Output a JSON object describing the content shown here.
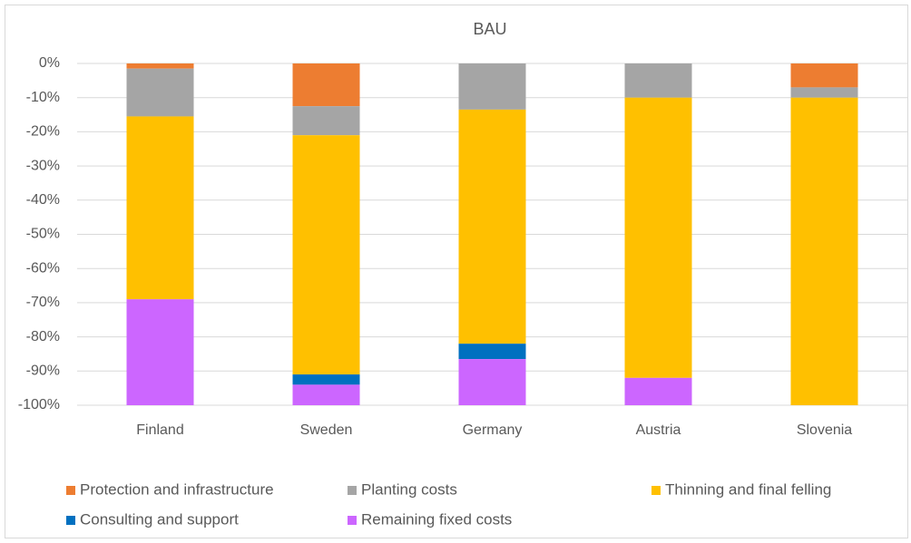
{
  "chart_data": {
    "type": "stacked_bar",
    "title": "BAU",
    "categories": [
      "Finland",
      "Sweden",
      "Germany",
      "Austria",
      "Slovenia"
    ],
    "series": [
      {
        "name": "Protection and infrastructure",
        "color": "#ed7d31",
        "values": [
          -1.5,
          -12.5,
          0,
          0,
          -7
        ]
      },
      {
        "name": "Planting costs",
        "color": "#a5a5a5",
        "values": [
          -14,
          -8.5,
          -13.5,
          -10,
          -3
        ]
      },
      {
        "name": "Thinning and final felling",
        "color": "#ffc000",
        "values": [
          -53.5,
          -70,
          -68.5,
          -82,
          -90
        ]
      },
      {
        "name": "Consulting and support",
        "color": "#0070c0",
        "values": [
          0,
          -3,
          -4.5,
          0,
          0
        ]
      },
      {
        "name": "Remaining fixed costs",
        "color": "#cc66ff",
        "values": [
          -31,
          -6,
          -13.5,
          -8,
          0
        ]
      }
    ],
    "ylim": [
      -100,
      0
    ],
    "yticks": [
      {
        "value": 0,
        "label": "0%"
      },
      {
        "value": -10,
        "label": "-10%"
      },
      {
        "value": -20,
        "label": "-20%"
      },
      {
        "value": -30,
        "label": "-30%"
      },
      {
        "value": -40,
        "label": "-40%"
      },
      {
        "value": -50,
        "label": "-50%"
      },
      {
        "value": -60,
        "label": "-60%"
      },
      {
        "value": -70,
        "label": "-70%"
      },
      {
        "value": -80,
        "label": "-80%"
      },
      {
        "value": -90,
        "label": "-90%"
      },
      {
        "value": -100,
        "label": "-100%"
      }
    ],
    "grid": true,
    "legend": "bottom"
  }
}
